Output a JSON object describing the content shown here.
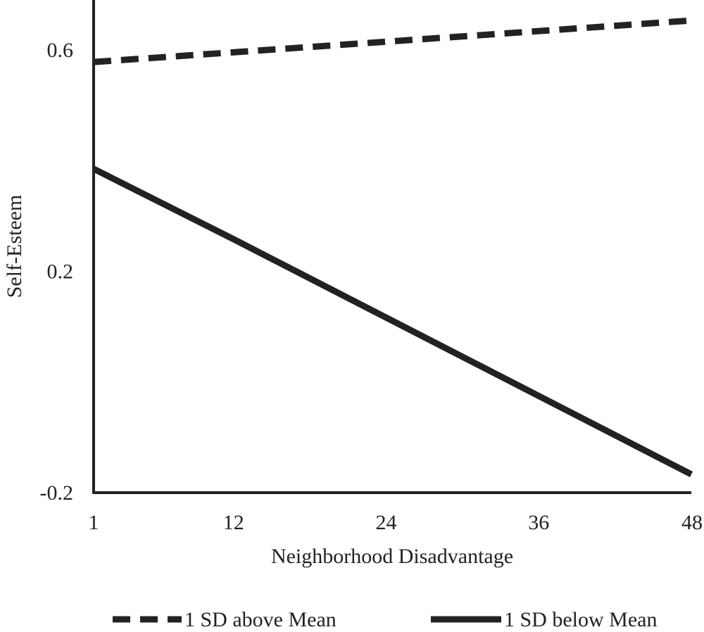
{
  "chart_data": {
    "type": "line",
    "title": "",
    "xlabel": "Neighborhood Disadvantage",
    "ylabel": "Self-Esteem",
    "x_ticks": [
      1,
      12,
      24,
      36,
      48
    ],
    "y_ticks": [
      -0.2,
      0.2,
      0.6
    ],
    "x_tick_labels": [
      "1",
      "12",
      "24",
      "36",
      "48"
    ],
    "y_tick_labels": [
      "-0.2",
      "0.2",
      "0.6"
    ],
    "xlim": [
      1,
      48
    ],
    "ylim": [
      -0.2,
      0.69
    ],
    "grid": false,
    "legend_position": "bottom",
    "series": [
      {
        "name": "1 SD above Mean",
        "style": "dashed",
        "color": "#222222",
        "x": [
          1,
          48
        ],
        "y": [
          0.578,
          0.653
        ]
      },
      {
        "name": "1 SD below Mean",
        "style": "solid",
        "color": "#222222",
        "x": [
          1,
          12,
          48
        ],
        "y": [
          0.385,
          0.258,
          -0.167
        ]
      }
    ]
  }
}
